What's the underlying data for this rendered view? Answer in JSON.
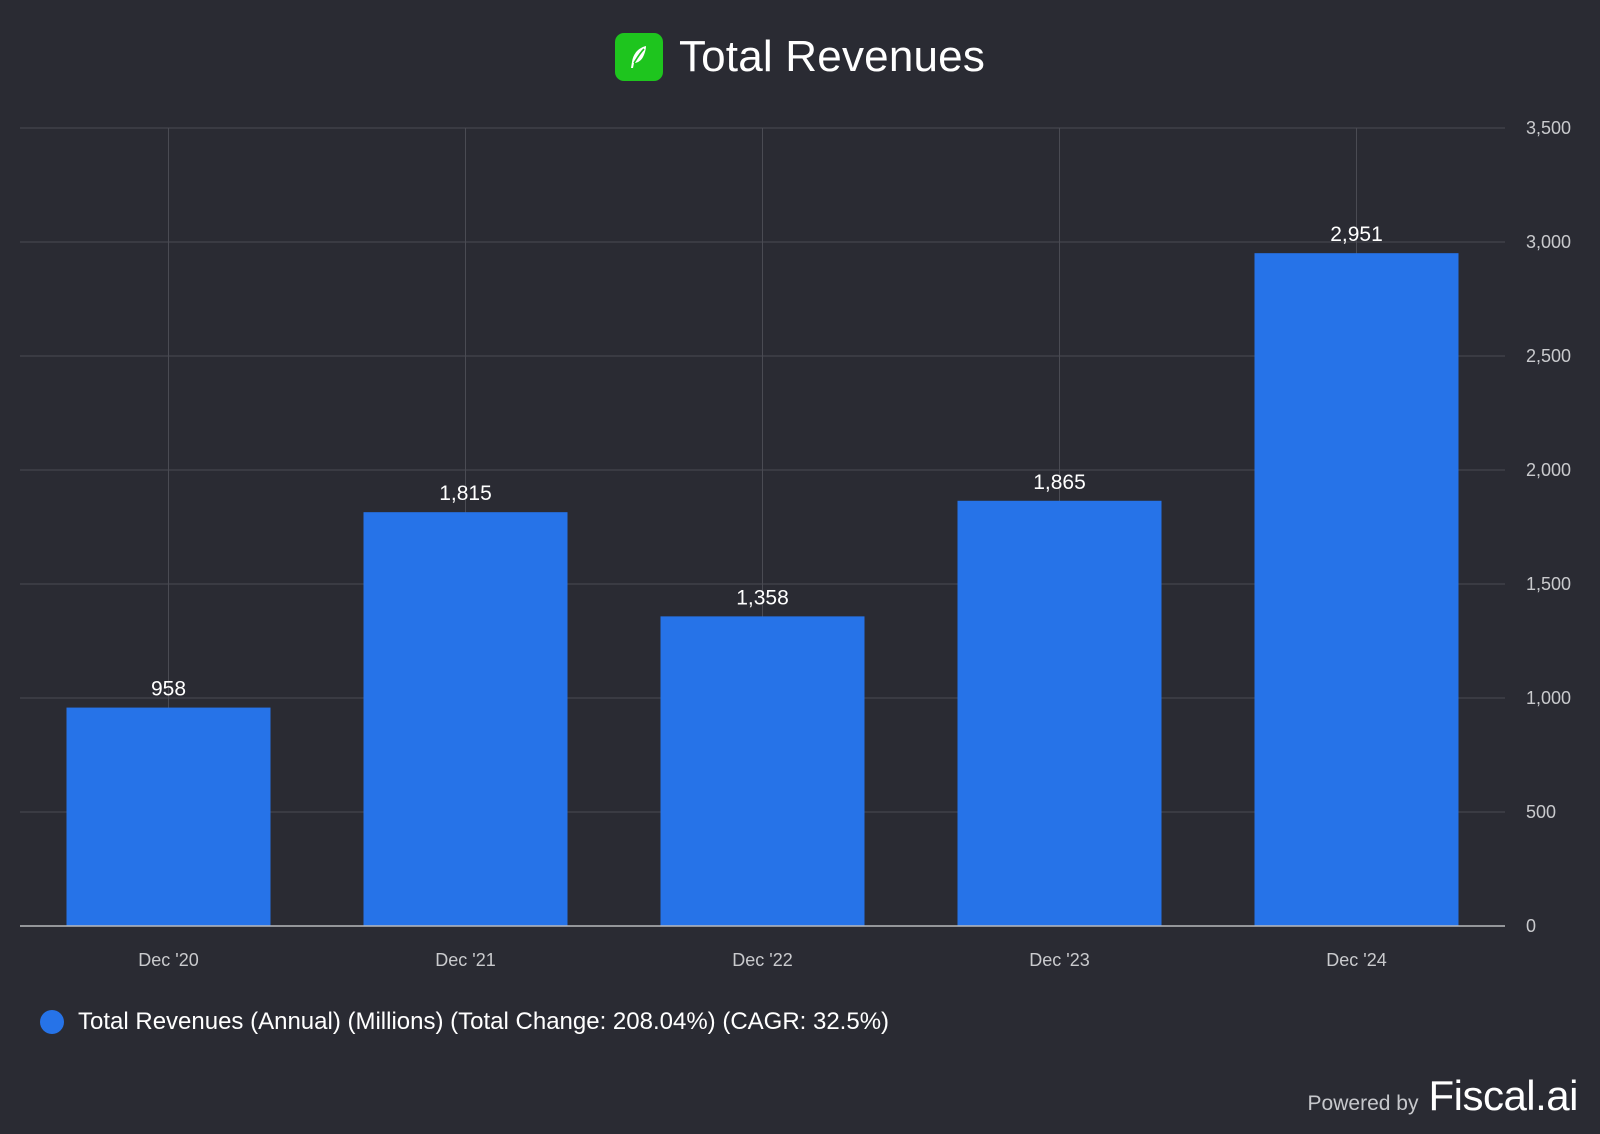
{
  "header": {
    "title": "Total Revenues",
    "logo_icon": "feather-icon",
    "logo_color": "#1ec51e"
  },
  "legend": {
    "label": "Total Revenues (Annual) (Millions) (Total Change: 208.04%) (CAGR: 32.5%)",
    "color": "#2673e8"
  },
  "footer": {
    "powered_prefix": "Powered by",
    "brand": "Fiscal.ai"
  },
  "chart_data": {
    "type": "bar",
    "title": "Total Revenues",
    "categories": [
      "Dec '20",
      "Dec '21",
      "Dec '22",
      "Dec '23",
      "Dec '24"
    ],
    "series": [
      {
        "name": "Total Revenues (Annual) (Millions) (Total Change: 208.04%) (CAGR: 32.5%)",
        "values": [
          958,
          1815,
          1358,
          1865,
          2951
        ],
        "labels": [
          "958",
          "1,815",
          "1,358",
          "1,865",
          "2,951"
        ],
        "color": "#2673e8"
      }
    ],
    "ylim": [
      0,
      3500
    ],
    "yticks": [
      0,
      500,
      1000,
      1500,
      2000,
      2500,
      3000,
      3500
    ],
    "ytick_labels": [
      "0",
      "500",
      "1,000",
      "1,500",
      "2,000",
      "2,500",
      "3,000",
      "3,500"
    ],
    "y_axis_side": "right",
    "grid": true,
    "legend_position": "bottom-left"
  }
}
